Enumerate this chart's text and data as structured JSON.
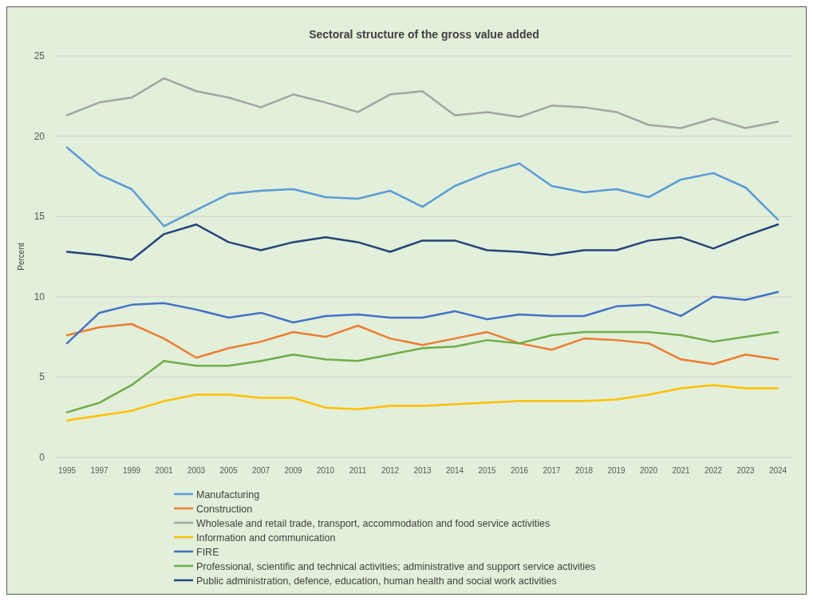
{
  "chart_data": {
    "type": "line",
    "title": "Sectoral structure of the  gross value added",
    "ylabel": "Percent",
    "categories": [
      "1995",
      "1997",
      "1999",
      "2001",
      "2003",
      "2005",
      "2007",
      "2009",
      "2010",
      "2011",
      "2012",
      "2013",
      "2014",
      "2015",
      "2016",
      "2017",
      "2018",
      "2019",
      "2020",
      "2021",
      "2022",
      "2023",
      "2024"
    ],
    "ylim": [
      0,
      25
    ],
    "yticks": [
      0,
      5,
      10,
      15,
      20,
      25
    ],
    "grid": "y",
    "legend": "bottom",
    "marker": "none",
    "line_style": "solid",
    "series": [
      {
        "name": "Manufacturing",
        "color": "#5b9bd5",
        "values": [
          19.3,
          17.6,
          16.7,
          14.4,
          15.4,
          16.4,
          16.6,
          16.7,
          16.2,
          16.1,
          16.6,
          15.6,
          16.9,
          17.7,
          18.3,
          16.9,
          16.5,
          16.7,
          16.2,
          17.3,
          17.7,
          16.8,
          14.8
        ]
      },
      {
        "name": "Construction",
        "color": "#ed7d31",
        "values": [
          7.6,
          8.1,
          8.3,
          7.4,
          6.2,
          6.8,
          7.2,
          7.8,
          7.5,
          8.2,
          7.4,
          7.0,
          7.4,
          7.8,
          7.1,
          6.7,
          7.4,
          7.3,
          7.1,
          6.1,
          5.8,
          6.4,
          6.1
        ]
      },
      {
        "name": "Wholesale and retail trade, transport, accommodation and food service activities",
        "color": "#a5a5a5",
        "values": [
          21.3,
          22.1,
          22.4,
          23.6,
          22.8,
          22.4,
          21.8,
          22.6,
          22.1,
          21.5,
          22.6,
          22.8,
          21.3,
          21.5,
          21.2,
          21.9,
          21.8,
          21.5,
          20.7,
          20.5,
          21.1,
          20.5,
          20.9
        ]
      },
      {
        "name": "Information and communication",
        "color": "#ffc000",
        "values": [
          2.3,
          2.6,
          2.9,
          3.5,
          3.9,
          3.9,
          3.7,
          3.7,
          3.1,
          3.0,
          3.2,
          3.2,
          3.3,
          3.4,
          3.5,
          3.5,
          3.5,
          3.6,
          3.9,
          4.3,
          4.5,
          4.3,
          4.3
        ]
      },
      {
        "name": "FIRE",
        "color": "#4472c4",
        "values": [
          7.1,
          9.0,
          9.5,
          9.6,
          9.2,
          8.7,
          9.0,
          8.4,
          8.8,
          8.9,
          8.7,
          8.7,
          9.1,
          8.6,
          8.9,
          8.8,
          8.8,
          9.4,
          9.5,
          8.8,
          10.0,
          9.8,
          10.3
        ]
      },
      {
        "name": "Professional, scientific and technical activities; administrative and support service activities",
        "color": "#70ad47",
        "values": [
          2.8,
          3.4,
          4.5,
          6.0,
          5.7,
          5.7,
          6.0,
          6.4,
          6.1,
          6.0,
          6.4,
          6.8,
          6.9,
          7.3,
          7.1,
          7.6,
          7.8,
          7.8,
          7.8,
          7.6,
          7.2,
          7.5,
          7.8
        ]
      },
      {
        "name": "Public administration, defence, education, human health and social work activities",
        "color": "#264478",
        "values": [
          12.8,
          12.6,
          12.3,
          13.9,
          14.5,
          13.4,
          12.9,
          13.4,
          13.7,
          13.4,
          12.8,
          13.5,
          13.5,
          12.9,
          12.8,
          12.6,
          12.9,
          12.9,
          13.5,
          13.7,
          13.0,
          13.8,
          14.5
        ]
      }
    ]
  }
}
